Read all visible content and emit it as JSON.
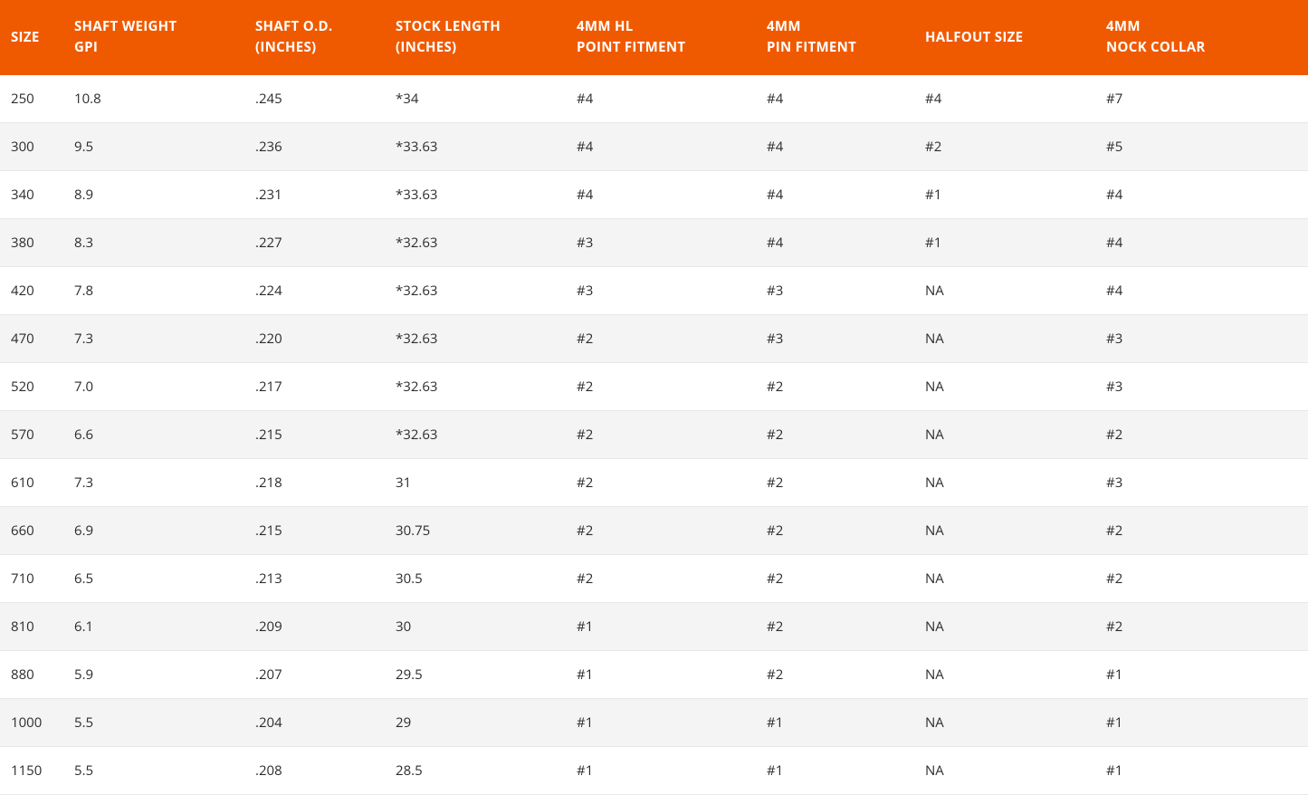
{
  "table": {
    "header_bg": "#ef5a00",
    "header_fg": "#ffffff",
    "row_alt_bg": "#f4f4f4",
    "border_color": "#e7e7e7",
    "columns": [
      {
        "key": "size",
        "line1": "SIZE",
        "line2": ""
      },
      {
        "key": "gpi",
        "line1": "SHAFT WEIGHT",
        "line2": "GPI"
      },
      {
        "key": "od",
        "line1": "SHAFT O.D.",
        "line2": "(INCHES)"
      },
      {
        "key": "stock",
        "line1": "STOCK LENGTH",
        "line2": "(INCHES)"
      },
      {
        "key": "hl",
        "line1": "4MM HL",
        "line2": "POINT FITMENT"
      },
      {
        "key": "pin",
        "line1": "4MM",
        "line2": "PIN FITMENT"
      },
      {
        "key": "half",
        "line1": "HALFOUT SIZE",
        "line2": ""
      },
      {
        "key": "nock",
        "line1": "4MM",
        "line2": "NOCK COLLAR"
      }
    ],
    "rows": [
      {
        "size": "250",
        "gpi": "10.8",
        "od": ".245",
        "stock": "*34",
        "hl": "#4",
        "pin": "#4",
        "half": "#4",
        "nock": "#7"
      },
      {
        "size": "300",
        "gpi": "9.5",
        "od": ".236",
        "stock": "*33.63",
        "hl": "#4",
        "pin": "#4",
        "half": "#2",
        "nock": "#5"
      },
      {
        "size": "340",
        "gpi": "8.9",
        "od": ".231",
        "stock": "*33.63",
        "hl": "#4",
        "pin": "#4",
        "half": "#1",
        "nock": "#4"
      },
      {
        "size": "380",
        "gpi": "8.3",
        "od": ".227",
        "stock": "*32.63",
        "hl": "#3",
        "pin": "#4",
        "half": "#1",
        "nock": "#4"
      },
      {
        "size": "420",
        "gpi": "7.8",
        "od": ".224",
        "stock": "*32.63",
        "hl": "#3",
        "pin": "#3",
        "half": "NA",
        "nock": "#4"
      },
      {
        "size": "470",
        "gpi": "7.3",
        "od": ".220",
        "stock": "*32.63",
        "hl": "#2",
        "pin": "#3",
        "half": "NA",
        "nock": "#3"
      },
      {
        "size": "520",
        "gpi": "7.0",
        "od": ".217",
        "stock": "*32.63",
        "hl": "#2",
        "pin": "#2",
        "half": "NA",
        "nock": "#3"
      },
      {
        "size": "570",
        "gpi": "6.6",
        "od": ".215",
        "stock": "*32.63",
        "hl": "#2",
        "pin": "#2",
        "half": "NA",
        "nock": "#2"
      },
      {
        "size": "610",
        "gpi": "7.3",
        "od": ".218",
        "stock": "31",
        "hl": "#2",
        "pin": "#2",
        "half": "NA",
        "nock": "#3"
      },
      {
        "size": "660",
        "gpi": "6.9",
        "od": ".215",
        "stock": "30.75",
        "hl": "#2",
        "pin": "#2",
        "half": "NA",
        "nock": "#2"
      },
      {
        "size": "710",
        "gpi": "6.5",
        "od": ".213",
        "stock": "30.5",
        "hl": "#2",
        "pin": "#2",
        "half": "NA",
        "nock": "#2"
      },
      {
        "size": "810",
        "gpi": "6.1",
        "od": ".209",
        "stock": "30",
        "hl": "#1",
        "pin": "#2",
        "half": "NA",
        "nock": "#2"
      },
      {
        "size": "880",
        "gpi": "5.9",
        "od": ".207",
        "stock": "29.5",
        "hl": "#1",
        "pin": "#2",
        "half": "NA",
        "nock": "#1"
      },
      {
        "size": "1000",
        "gpi": "5.5",
        "od": ".204",
        "stock": "29",
        "hl": "#1",
        "pin": "#1",
        "half": "NA",
        "nock": "#1"
      },
      {
        "size": "1150",
        "gpi": "5.5",
        "od": ".208",
        "stock": "28.5",
        "hl": "#1",
        "pin": "#1",
        "half": "NA",
        "nock": "#1"
      }
    ]
  }
}
